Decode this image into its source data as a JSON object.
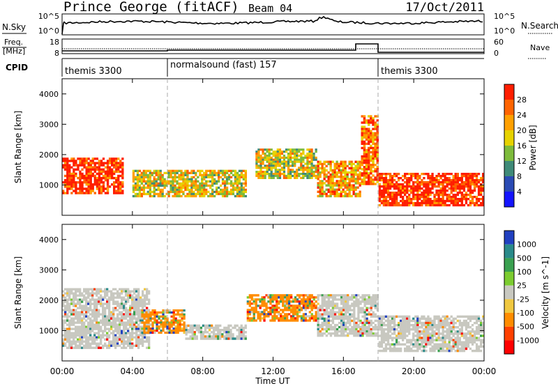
{
  "header": {
    "station": "Prince George (fitACF)",
    "beam": "Beam 04",
    "date": "17/Oct/2011"
  },
  "top_panels": {
    "nsky_label": "N.Sky",
    "nsky_ticks": [
      "10^5",
      "10^0"
    ],
    "nsearch_label": "N.Search",
    "nsearch_ticks": [
      "10^5",
      "10^0"
    ],
    "freq_label_1": "Freq.",
    "freq_label_2": "[MHz]",
    "freq_ticks": [
      "18",
      "8"
    ],
    "nave_label": "Nave",
    "nave_ticks": [
      "60",
      "0"
    ],
    "cpid_label": "CPID",
    "cpid_segments": [
      {
        "label": "themis 3300",
        "start_hour": 0,
        "end_hour": 6
      },
      {
        "label": "normalsound (fast) 157",
        "start_hour": 6,
        "end_hour": 18
      },
      {
        "label": "themis 3300",
        "start_hour": 18,
        "end_hour": 24
      }
    ]
  },
  "chart_data": [
    {
      "type": "heatmap",
      "title": "",
      "xlabel": "Time UT",
      "ylabel": "Slant Range [km]",
      "xlim_hours": [
        0,
        24
      ],
      "ylim": [
        0,
        4500
      ],
      "yticks": [
        "1000",
        "2000",
        "3000",
        "4000"
      ],
      "colorbar_label": "Power [dB]",
      "colorbar_ticks": [
        "4",
        "8",
        "12",
        "16",
        "20",
        "24",
        "28"
      ],
      "colorbar_colors": [
        "#1414ff",
        "#2a4bb4",
        "#3f8a78",
        "#7dbb3c",
        "#e6d200",
        "#ffa000",
        "#ff6400",
        "#ff1e00"
      ],
      "echo_regions": [
        {
          "start_hour": 0.0,
          "end_hour": 3.5,
          "range_low": 700,
          "range_high": 1900,
          "mean_power_db": 28
        },
        {
          "start_hour": 4.0,
          "end_hour": 10.5,
          "range_low": 600,
          "range_high": 1500,
          "mean_power_db": 16
        },
        {
          "start_hour": 11.0,
          "end_hour": 14.5,
          "range_low": 1200,
          "range_high": 2200,
          "mean_power_db": 16
        },
        {
          "start_hour": 14.5,
          "end_hour": 17.0,
          "range_low": 600,
          "range_high": 1800,
          "mean_power_db": 20
        },
        {
          "start_hour": 17.0,
          "end_hour": 18.0,
          "range_low": 1000,
          "range_high": 3300,
          "mean_power_db": 24
        },
        {
          "start_hour": 18.0,
          "end_hour": 24.0,
          "range_low": 300,
          "range_high": 1400,
          "mean_power_db": 28
        }
      ]
    },
    {
      "type": "heatmap",
      "title": "",
      "xlabel": "Time UT",
      "ylabel": "Slant Range [km]",
      "xlim_hours": [
        0,
        24
      ],
      "ylim": [
        0,
        4500
      ],
      "yticks": [
        "1000",
        "2000",
        "3000",
        "4000"
      ],
      "colorbar_label": "Velocity [m s^-1]",
      "colorbar_ticks": [
        "1000",
        "500",
        "100",
        "25",
        "-25",
        "-100",
        "-500",
        "-1000"
      ],
      "colorbar_colors": [
        "#2040c0",
        "#2a8a8a",
        "#3aa050",
        "#7ccc30",
        "#c8c8c0",
        "#f0c840",
        "#ff8c00",
        "#ff4000",
        "#ff0000"
      ],
      "echo_regions": [
        {
          "start_hour": 0.0,
          "end_hour": 5.0,
          "range_low": 400,
          "range_high": 2400,
          "mean_velocity": 0
        },
        {
          "start_hour": 4.5,
          "end_hour": 7.0,
          "range_low": 900,
          "range_high": 1700,
          "mean_velocity": -300
        },
        {
          "start_hour": 7.0,
          "end_hour": 10.5,
          "range_low": 700,
          "range_high": 1200,
          "mean_velocity": 0
        },
        {
          "start_hour": 10.5,
          "end_hour": 14.5,
          "range_low": 1300,
          "range_high": 2200,
          "mean_velocity": -300
        },
        {
          "start_hour": 14.5,
          "end_hour": 18.0,
          "range_low": 800,
          "range_high": 2200,
          "mean_velocity": 0
        },
        {
          "start_hour": 18.0,
          "end_hour": 24.0,
          "range_low": 300,
          "range_high": 1500,
          "mean_velocity": 0
        }
      ]
    }
  ],
  "x_axis": {
    "ticks": [
      "00:00",
      "04:00",
      "08:00",
      "12:00",
      "16:00",
      "20:00",
      "00:00"
    ],
    "label": "Time UT"
  }
}
